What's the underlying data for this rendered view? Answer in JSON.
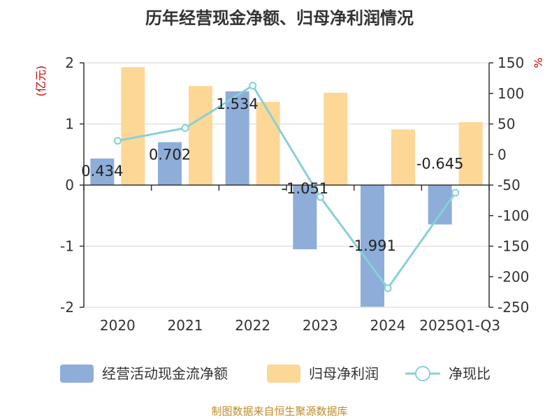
{
  "chart_data": {
    "type": "bar",
    "title": "历年经营现金净额、归母净利润情况",
    "categories": [
      "2020",
      "2021",
      "2022",
      "2023",
      "2024",
      "2025Q1-Q3"
    ],
    "left_axis": {
      "unit": "(亿元)",
      "ylim": [
        -2,
        2
      ],
      "ticks": [
        "2",
        "1",
        "0",
        "-1",
        "-2"
      ]
    },
    "right_axis": {
      "unit": "%",
      "ylim": [
        -250,
        150
      ],
      "ticks": [
        "150",
        "100",
        "50",
        "0",
        "-50",
        "-100",
        "-150",
        "-200",
        "-250"
      ]
    },
    "series": [
      {
        "name": "经营活动现金流净额",
        "type": "bar",
        "axis": "left",
        "color": "#8eadd9",
        "values": [
          0.434,
          0.702,
          1.534,
          -1.051,
          -1.991,
          -0.645
        ],
        "labels": [
          "0.434",
          "0.702",
          "1.534",
          "-1.051",
          "-1.991",
          "-0.645"
        ]
      },
      {
        "name": "归母净利润",
        "type": "bar",
        "axis": "left",
        "color": "#fdd796",
        "values": [
          1.93,
          1.62,
          1.36,
          1.51,
          0.91,
          1.03
        ]
      },
      {
        "name": "净现比",
        "type": "line",
        "axis": "right",
        "color": "#86d1d6",
        "values": [
          22.5,
          43.3,
          112.8,
          -69.6,
          -218.8,
          -62.6
        ]
      }
    ],
    "grid": true,
    "legend": "bottom"
  },
  "footer": {
    "source": "制图数据来自恒生聚源数据库"
  }
}
